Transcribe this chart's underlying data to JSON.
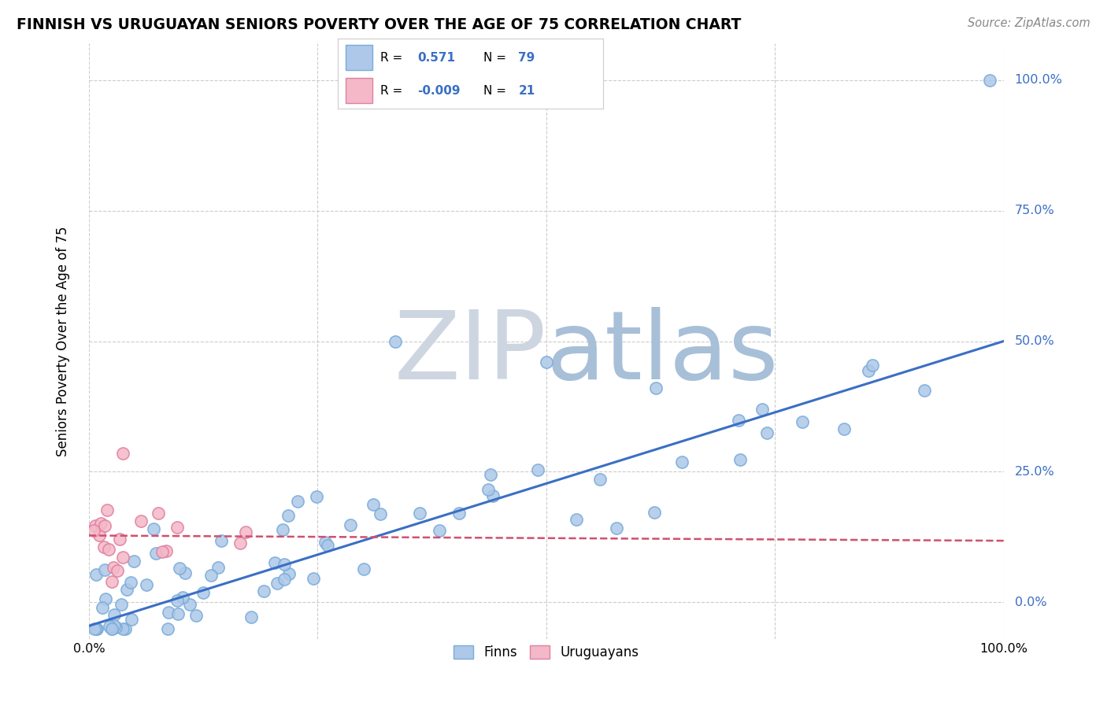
{
  "title": "FINNISH VS URUGUAYAN SENIORS POVERTY OVER THE AGE OF 75 CORRELATION CHART",
  "source_text": "Source: ZipAtlas.com",
  "ylabel": "Seniors Poverty Over the Age of 75",
  "xlim": [
    0.0,
    1.0
  ],
  "ylim": [
    -0.07,
    1.07
  ],
  "blue_color": "#adc8e8",
  "blue_edge_color": "#7aabda",
  "blue_line_color": "#3a6fc4",
  "pink_color": "#f4b8c8",
  "pink_edge_color": "#e080a0",
  "pink_line_color": "#d05070",
  "grid_color": "#cccccc",
  "background_color": "#ffffff",
  "legend_R_color": "#3a6fc4",
  "legend_N_color": "#3a6fc4",
  "finns_R": 0.571,
  "finns_N": 79,
  "uruguayans_R": -0.009,
  "uruguayans_N": 21,
  "blue_trend_x0": 0.0,
  "blue_trend_y0": -0.045,
  "blue_trend_x1": 1.0,
  "blue_trend_y1": 0.5,
  "pink_trend_x0": 0.0,
  "pink_trend_y0": 0.128,
  "pink_trend_x1": 1.0,
  "pink_trend_y1": 0.118
}
